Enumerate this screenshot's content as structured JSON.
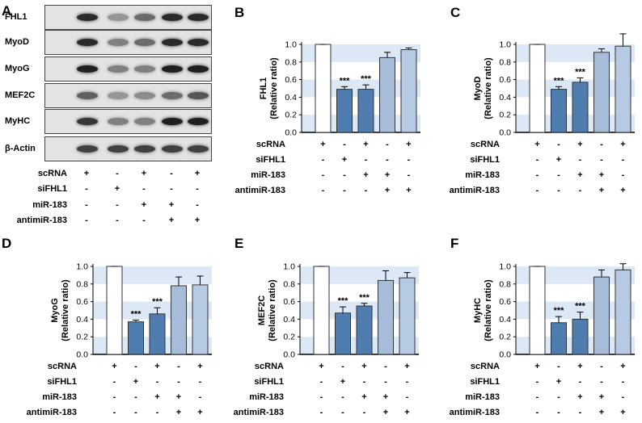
{
  "panel_a": {
    "letter": "A",
    "blots": [
      "FHL1",
      "MyoD",
      "MyoG",
      "MEF2C",
      "MyHC",
      "β-Actin"
    ],
    "band_intensity": [
      [
        0.85,
        0.35,
        0.55,
        0.85,
        0.85
      ],
      [
        0.85,
        0.45,
        0.55,
        0.85,
        0.85
      ],
      [
        0.9,
        0.45,
        0.45,
        0.9,
        0.9
      ],
      [
        0.6,
        0.35,
        0.4,
        0.55,
        0.65
      ],
      [
        0.8,
        0.45,
        0.45,
        0.9,
        0.9
      ],
      [
        0.75,
        0.75,
        0.75,
        0.75,
        0.75
      ]
    ]
  },
  "conditions": {
    "labels": [
      "scRNA",
      "siFHL1",
      "miR-183",
      "antimiR-183"
    ],
    "signs": [
      [
        "+",
        "-",
        "+",
        "-",
        "+"
      ],
      [
        "-",
        "+",
        "-",
        "-",
        "-"
      ],
      [
        "-",
        "-",
        "+",
        "+",
        "-"
      ],
      [
        "-",
        "-",
        "-",
        "+",
        "+"
      ]
    ]
  },
  "chart_data": [
    {
      "letter": "B",
      "type": "bar",
      "ylabel_top": "FHL1",
      "ylabel_bottom": "(Relative ratio)",
      "ylim": [
        0,
        1.0
      ],
      "yticks": [
        "0.0",
        "0.2",
        "0.4",
        "0.6",
        "0.8",
        "1.0"
      ],
      "values": [
        1.0,
        0.49,
        0.49,
        0.85,
        0.94
      ],
      "errors": [
        0.0,
        0.03,
        0.05,
        0.06,
        0.02
      ],
      "sig": [
        "",
        "***",
        "***",
        "",
        ""
      ]
    },
    {
      "letter": "C",
      "type": "bar",
      "ylabel_top": "MyoD",
      "ylabel_bottom": "(Relative ratio)",
      "ylim": [
        0,
        1.0
      ],
      "yticks": [
        "0.0",
        "0.2",
        "0.4",
        "0.6",
        "0.8",
        "1.0"
      ],
      "values": [
        1.0,
        0.49,
        0.57,
        0.91,
        0.98
      ],
      "errors": [
        0.0,
        0.03,
        0.05,
        0.04,
        0.14
      ],
      "sig": [
        "",
        "***",
        "***",
        "",
        ""
      ]
    },
    {
      "letter": "D",
      "type": "bar",
      "ylabel_top": "MyoG",
      "ylabel_bottom": "(Relative ratio)",
      "ylim": [
        0,
        1.0
      ],
      "yticks": [
        "0.0",
        "0.2",
        "0.4",
        "0.6",
        "0.8",
        "1.0"
      ],
      "values": [
        1.0,
        0.37,
        0.46,
        0.78,
        0.79
      ],
      "errors": [
        0.0,
        0.02,
        0.07,
        0.1,
        0.1
      ],
      "sig": [
        "",
        "***",
        "***",
        "",
        ""
      ]
    },
    {
      "letter": "E",
      "type": "bar",
      "ylabel_top": "MEF2C",
      "ylabel_bottom": "(Relative ratio)",
      "ylim": [
        0,
        1.0
      ],
      "yticks": [
        "0.0",
        "0.2",
        "0.4",
        "0.6",
        "0.8",
        "1.0"
      ],
      "values": [
        1.0,
        0.47,
        0.55,
        0.84,
        0.87
      ],
      "errors": [
        0.0,
        0.07,
        0.03,
        0.11,
        0.06
      ],
      "sig": [
        "",
        "***",
        "***",
        "",
        ""
      ]
    },
    {
      "letter": "F",
      "type": "bar",
      "ylabel_top": "MyHC",
      "ylabel_bottom": "(Relative ratio)",
      "ylim": [
        0,
        1.0
      ],
      "yticks": [
        "0.0",
        "0.2",
        "0.4",
        "0.6",
        "0.8",
        "1.0"
      ],
      "values": [
        1.0,
        0.36,
        0.4,
        0.88,
        0.96
      ],
      "errors": [
        0.0,
        0.07,
        0.08,
        0.08,
        0.07
      ],
      "sig": [
        "",
        "***",
        "***",
        "",
        ""
      ]
    }
  ],
  "colors": {
    "bars": [
      "#ffffff",
      "#4f7db0",
      "#4f7db0",
      "#a6bcd9",
      "#b6cae3"
    ],
    "stripe": "#dde8f6",
    "bar_stroke": "#333333"
  }
}
